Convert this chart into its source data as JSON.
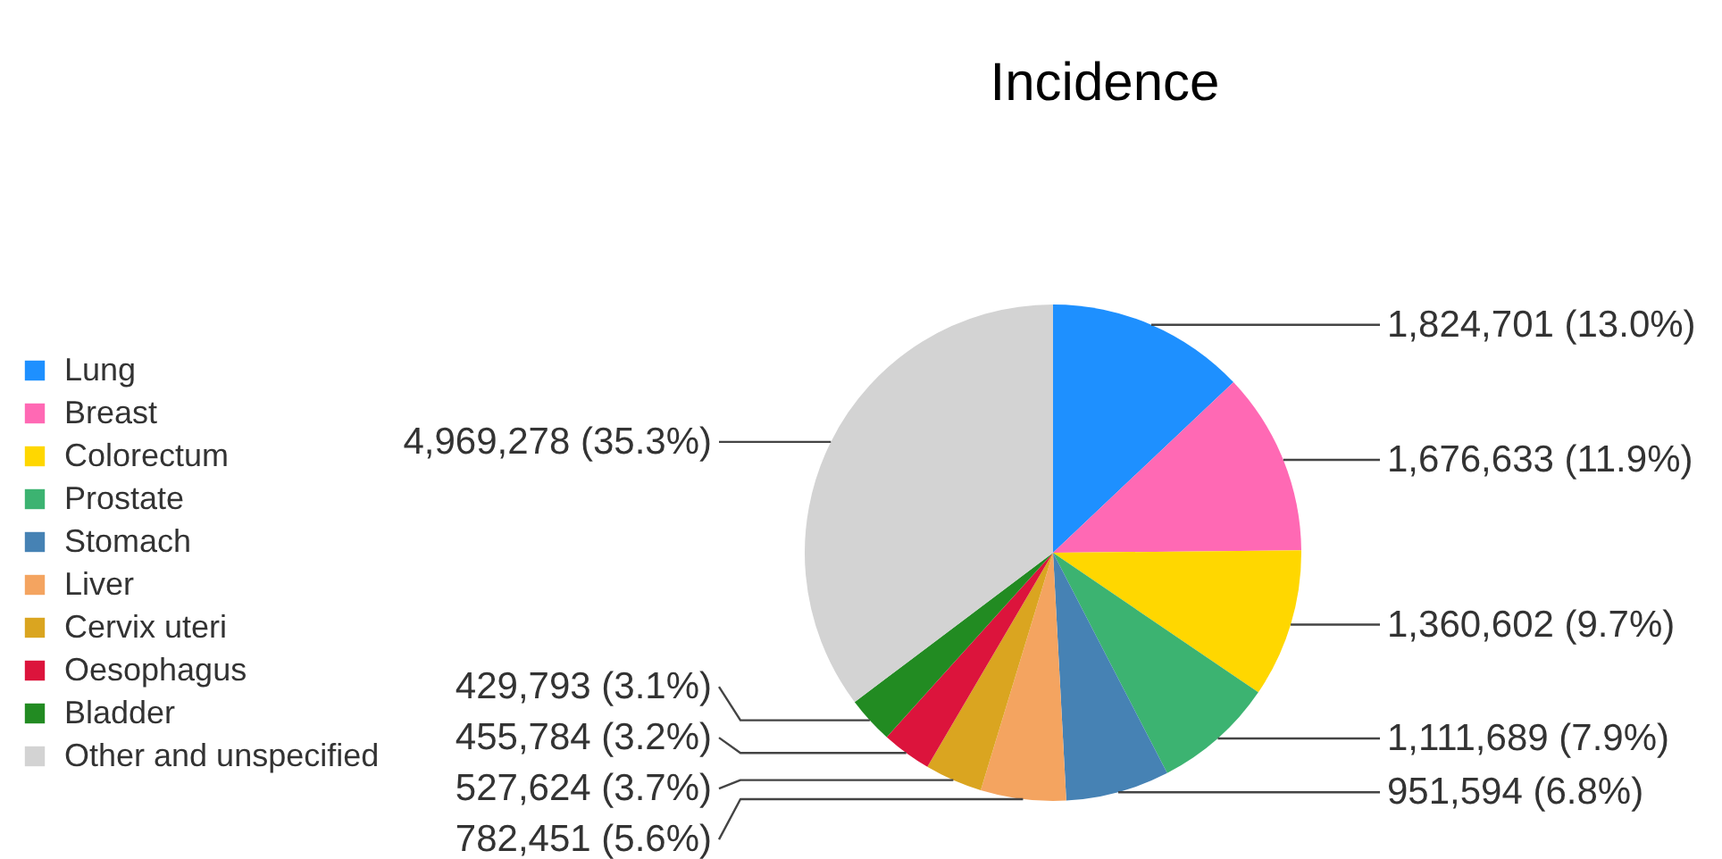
{
  "chart_data": {
    "type": "pie",
    "title": "Incidence",
    "categories": [
      "Lung",
      "Breast",
      "Colorectum",
      "Prostate",
      "Stomach",
      "Liver",
      "Cervix uteri",
      "Oesophagus",
      "Bladder",
      "Other and unspecified"
    ],
    "values": [
      1824701,
      1676633,
      1360602,
      1111689,
      951594,
      782451,
      527624,
      455784,
      429793,
      4969278
    ],
    "colors": [
      "#1e90ff",
      "#ff69b4",
      "#ffd700",
      "#3cb371",
      "#4682b4",
      "#f4a460",
      "#daa520",
      "#dc143c",
      "#228b22",
      "#d3d3d3"
    ],
    "value_labels": [
      "1,824,701 (13.0%)",
      "1,676,633 (11.9%)",
      "1,360,602 (9.7%)",
      "1,111,689 (7.9%)",
      "951,594 (6.8%)",
      "782,451 (5.6%)",
      "527,624 (3.7%)",
      "455,784 (3.2%)",
      "429,793 (3.1%)",
      "4,969,278 (35.3%)"
    ],
    "legend": "left"
  }
}
